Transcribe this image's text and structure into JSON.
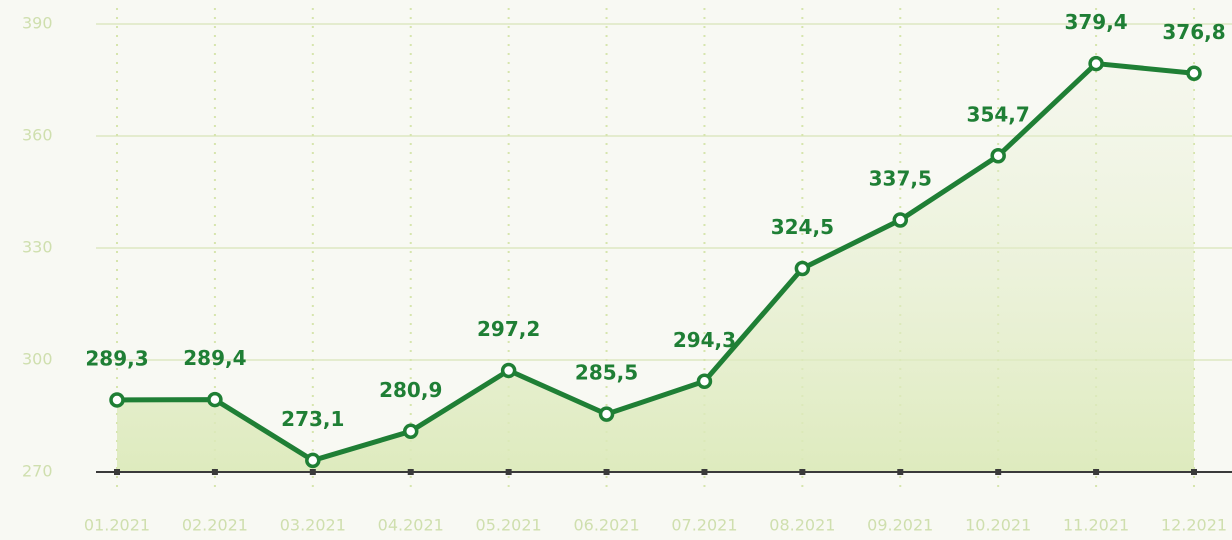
{
  "chart_data": {
    "type": "line",
    "categories": [
      "01.2021",
      "02.2021",
      "03.2021",
      "04.2021",
      "05.2021",
      "06.2021",
      "07.2021",
      "08.2021",
      "09.2021",
      "10.2021",
      "11.2021",
      "12.2021"
    ],
    "values": [
      289.3,
      289.4,
      273.1,
      280.9,
      297.2,
      285.5,
      294.3,
      324.5,
      337.5,
      354.7,
      379.4,
      376.8
    ],
    "value_labels": [
      "289,3",
      "289,4",
      "273,1",
      "280,9",
      "297,2",
      "285,5",
      "294,3",
      "324,5",
      "337,5",
      "354,7",
      "379,4",
      "376,8"
    ],
    "color": "#1f7f35",
    "ylim": [
      270,
      390
    ],
    "yticks": [
      270,
      300,
      330,
      360,
      390
    ],
    "grid": true
  }
}
